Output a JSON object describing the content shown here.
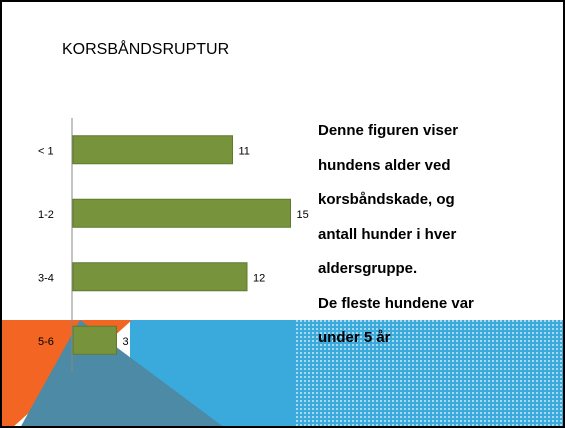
{
  "chart_data": {
    "type": "bar",
    "orientation": "horizontal",
    "title": "KORSBÅNDSRUPTUR",
    "categories": [
      "< 1",
      "1-2",
      "3-4",
      "5-6"
    ],
    "values": [
      11,
      15,
      12,
      3
    ],
    "color": "#77933c"
  },
  "note": {
    "lines": [
      "Denne figuren viser",
      "hundens alder ved",
      "korsbåndskade, og",
      "antall hunder i hver",
      "aldersgruppe.",
      "De fleste hundene var",
      "under 5 år"
    ]
  }
}
